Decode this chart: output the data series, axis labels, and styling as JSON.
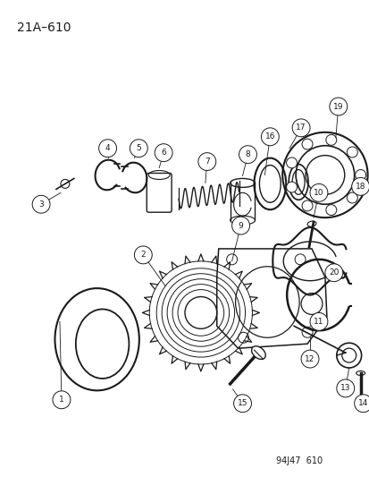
{
  "title": "21A–610",
  "footer": "94J47  610",
  "bg": "#ffffff",
  "lc": "#1a1a1a",
  "title_fs": 10,
  "footer_fs": 7,
  "label_fs": 6.5
}
